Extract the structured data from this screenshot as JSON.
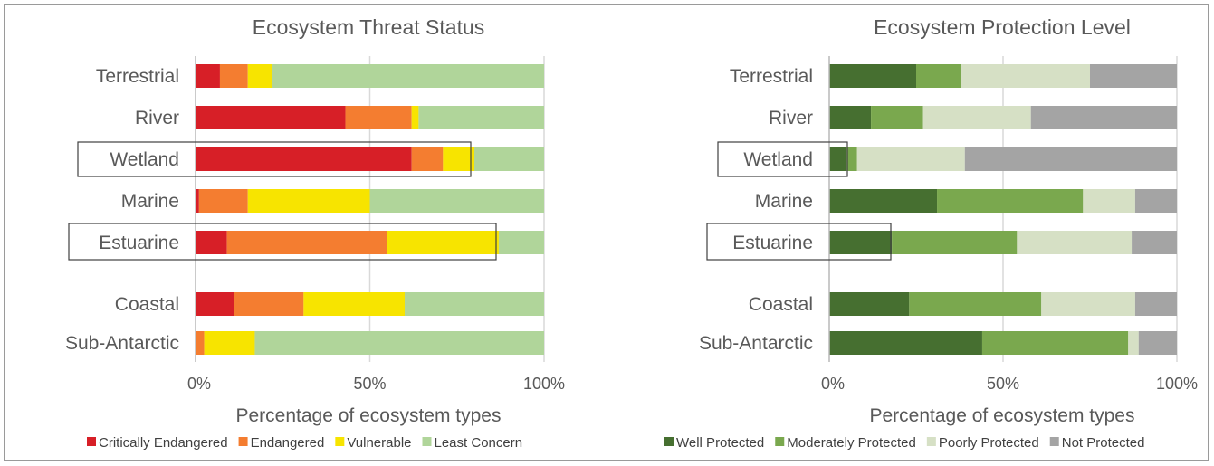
{
  "chart_data": [
    {
      "type": "bar",
      "orientation": "horizontal",
      "stacked": true,
      "title": "Ecosystem Threat Status",
      "xlabel": "Percentage of ecosystem types",
      "categories": [
        "Terrestrial",
        "River",
        "Wetland",
        "Marine",
        "Estuarine",
        "Coastal",
        "Sub-Antarctic"
      ],
      "highlighted": [
        "Wetland",
        "Estuarine"
      ],
      "xlim": [
        0,
        100
      ],
      "xticks": [
        "0%",
        "50%",
        "100%"
      ],
      "series": [
        {
          "name": "Critically Endangered",
          "color": "#d71f27",
          "values": [
            7,
            43,
            62,
            1,
            9,
            11,
            0
          ]
        },
        {
          "name": "Endangered",
          "color": "#f47d30",
          "values": [
            8,
            19,
            9,
            14,
            46,
            20,
            2.5
          ]
        },
        {
          "name": "Vulnerable",
          "color": "#f7e400",
          "values": [
            7,
            2,
            9,
            35,
            32,
            29,
            14.5
          ]
        },
        {
          "name": "Least Concern",
          "color": "#b0d59a",
          "values": [
            78,
            36,
            20,
            50,
            13,
            40,
            83
          ]
        }
      ],
      "legend_position": "bottom"
    },
    {
      "type": "bar",
      "orientation": "horizontal",
      "stacked": true,
      "title": "Ecosystem Protection Level",
      "xlabel": "Percentage of ecosystem types",
      "categories": [
        "Terrestrial",
        "River",
        "Wetland",
        "Marine",
        "Estuarine",
        "Coastal",
        "Sub-Antarctic"
      ],
      "highlighted": [
        "Wetland",
        "Estuarine"
      ],
      "xlim": [
        0,
        100
      ],
      "xticks": [
        "0%",
        "50%",
        "100%"
      ],
      "series": [
        {
          "name": "Well Protected",
          "color": "#466f30",
          "values": [
            25,
            12,
            5,
            31,
            18,
            23,
            44
          ]
        },
        {
          "name": "Moderately Protected",
          "color": "#7aa84e",
          "values": [
            13,
            15,
            3,
            42,
            36,
            38,
            42
          ]
        },
        {
          "name": "Poorly Protected",
          "color": "#d6e0c5",
          "values": [
            37,
            31,
            31,
            15,
            33,
            27,
            3
          ]
        },
        {
          "name": "Not Protected",
          "color": "#a4a4a4",
          "values": [
            25,
            42,
            61,
            12,
            13,
            12,
            11
          ]
        }
      ],
      "legend_position": "bottom"
    }
  ]
}
